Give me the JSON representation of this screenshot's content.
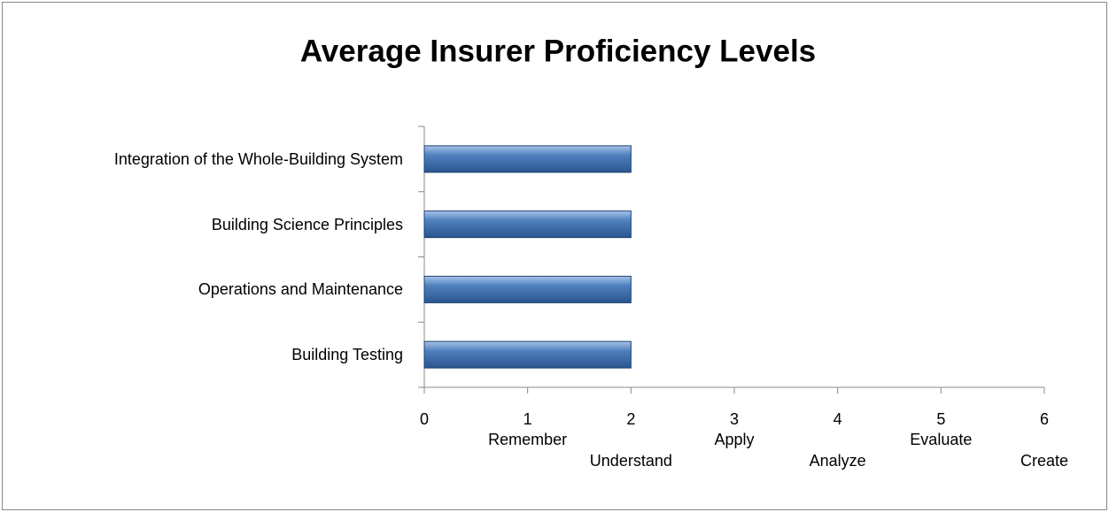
{
  "chart_data": {
    "type": "bar",
    "orientation": "horizontal",
    "title": "Average Insurer Proficiency Levels",
    "categories": [
      "Integration of the Whole-Building System",
      "Building Science Principles",
      "Operations and Maintenance",
      "Building Testing"
    ],
    "values": [
      2,
      2,
      2,
      2
    ],
    "color": "#4f81bd",
    "xlim": [
      0,
      6
    ],
    "xticks": [
      0,
      {
        "value": 1,
        "label": "1",
        "sublabel": "Remember"
      },
      {
        "value": 2,
        "label": "2",
        "sublabel": "Understand"
      },
      {
        "value": 3,
        "label": "3",
        "sublabel": "Apply"
      },
      {
        "value": 4,
        "label": "4",
        "sublabel": "Analyze"
      },
      {
        "value": 5,
        "label": "5",
        "sublabel": "Evaluate"
      },
      {
        "value": 6,
        "label": "6",
        "sublabel": "Create"
      }
    ],
    "grid": false
  }
}
